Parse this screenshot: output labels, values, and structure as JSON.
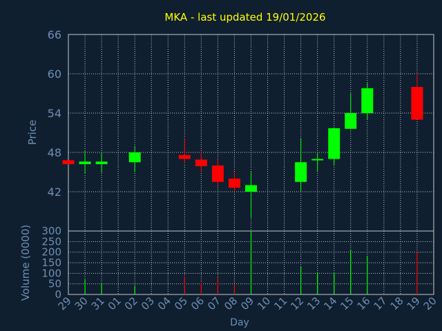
{
  "chart_data": {
    "type": "candlestick",
    "title": "MKA - last updated 19/01/2026",
    "xlabel": "Day",
    "price_panel": {
      "ylabel": "Price",
      "ylim": [
        36,
        66
      ],
      "yticks": [
        "42",
        "48",
        "54",
        "60",
        "66"
      ],
      "grid": true
    },
    "volume_panel": {
      "ylabel": "Volume (0000)",
      "ylim": [
        0,
        300
      ],
      "yticks": [
        "0",
        "50",
        "100",
        "150",
        "200",
        "250",
        "300"
      ],
      "grid": true
    },
    "x_tick_labels": [
      "29",
      "30",
      "31",
      "01",
      "02",
      "03",
      "04",
      "05",
      "06",
      "07",
      "08",
      "09",
      "10",
      "11",
      "12",
      "13",
      "14",
      "15",
      "16",
      "17",
      "18",
      "19",
      "20"
    ],
    "candles": [
      {
        "day": "29",
        "open": 46.8,
        "high": 46.8,
        "low": 46.2,
        "close": 46.2
      },
      {
        "day": "30",
        "open": 46.2,
        "high": 48.3,
        "low": 44.8,
        "close": 46.6
      },
      {
        "day": "31",
        "open": 46.2,
        "high": 48.0,
        "low": 44.9,
        "close": 46.6
      },
      {
        "day": "02",
        "open": 46.5,
        "high": 49.0,
        "low": 45.0,
        "close": 48.0
      },
      {
        "day": "05",
        "open": 47.6,
        "high": 50.2,
        "low": 46.3,
        "close": 47.0
      },
      {
        "day": "06",
        "open": 46.9,
        "high": 48.0,
        "low": 45.0,
        "close": 45.9
      },
      {
        "day": "07",
        "open": 46.0,
        "high": 47.0,
        "low": 43.0,
        "close": 43.5
      },
      {
        "day": "08",
        "open": 44.0,
        "high": 45.0,
        "low": 42.0,
        "close": 42.6
      },
      {
        "day": "09",
        "open": 42.0,
        "high": 45.0,
        "low": 38.0,
        "close": 43.0
      },
      {
        "day": "12",
        "open": 43.5,
        "high": 50.2,
        "low": 42.0,
        "close": 46.5
      },
      {
        "day": "13",
        "open": 46.8,
        "high": 48.0,
        "low": 45.0,
        "close": 47.0
      },
      {
        "day": "14",
        "open": 47.0,
        "high": 51.8,
        "low": 46.0,
        "close": 51.7
      },
      {
        "day": "15",
        "open": 51.6,
        "high": 57.0,
        "low": 51.6,
        "close": 54.0
      },
      {
        "day": "16",
        "open": 54.0,
        "high": 58.6,
        "low": 53.0,
        "close": 57.8
      },
      {
        "day": "19",
        "open": 58.0,
        "high": 60.0,
        "low": 53.0,
        "close": 53.0
      }
    ],
    "volume": [
      {
        "day": "29",
        "value": 0
      },
      {
        "day": "30",
        "value": 70
      },
      {
        "day": "31",
        "value": 50
      },
      {
        "day": "02",
        "value": 40
      },
      {
        "day": "05",
        "value": 85
      },
      {
        "day": "06",
        "value": 55
      },
      {
        "day": "07",
        "value": 80
      },
      {
        "day": "08",
        "value": 50
      },
      {
        "day": "09",
        "value": 300
      },
      {
        "day": "12",
        "value": 130
      },
      {
        "day": "13",
        "value": 105
      },
      {
        "day": "14",
        "value": 105
      },
      {
        "day": "15",
        "value": 210
      },
      {
        "day": "16",
        "value": 180
      },
      {
        "day": "19",
        "value": 200
      }
    ],
    "colors": {
      "background": "#0f1f30",
      "title": "#ffff00",
      "text": "#6f8fb3",
      "grid": "#c8c8c8",
      "frame": "#c8c8c8",
      "up": "#00ff00",
      "down": "#ff0000"
    }
  }
}
